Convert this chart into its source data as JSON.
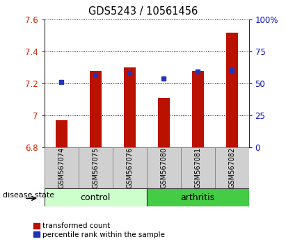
{
  "title": "GDS5243 / 10561456",
  "samples": [
    "GSM567074",
    "GSM567075",
    "GSM567076",
    "GSM567080",
    "GSM567081",
    "GSM567082"
  ],
  "red_values": [
    6.97,
    7.28,
    7.3,
    7.11,
    7.28,
    7.52
  ],
  "blue_values": [
    7.21,
    7.255,
    7.265,
    7.23,
    7.275,
    7.285
  ],
  "ylim": [
    6.8,
    7.6
  ],
  "y2lim": [
    0,
    100
  ],
  "yticks": [
    6.8,
    7.0,
    7.2,
    7.4,
    7.6
  ],
  "y2ticks": [
    0,
    25,
    50,
    75,
    100
  ],
  "y2ticklabels": [
    "0",
    "25",
    "50",
    "75",
    "100%"
  ],
  "control_color_light": "#ccffcc",
  "control_color": "#88ee88",
  "arthritis_color": "#44cc44",
  "bar_color": "#bb1100",
  "blue_color": "#2233bb",
  "tick_color_left": "#cc2200",
  "tick_color_right": "#1111bb",
  "bar_bottom": 6.8,
  "bar_width": 0.35,
  "legend_red_label": "transformed count",
  "legend_blue_label": "percentile rank within the sample",
  "disease_state_label": "disease state",
  "control_label": "control",
  "arthritis_label": "arthritis",
  "n_control": 3,
  "n_arthritis": 3
}
